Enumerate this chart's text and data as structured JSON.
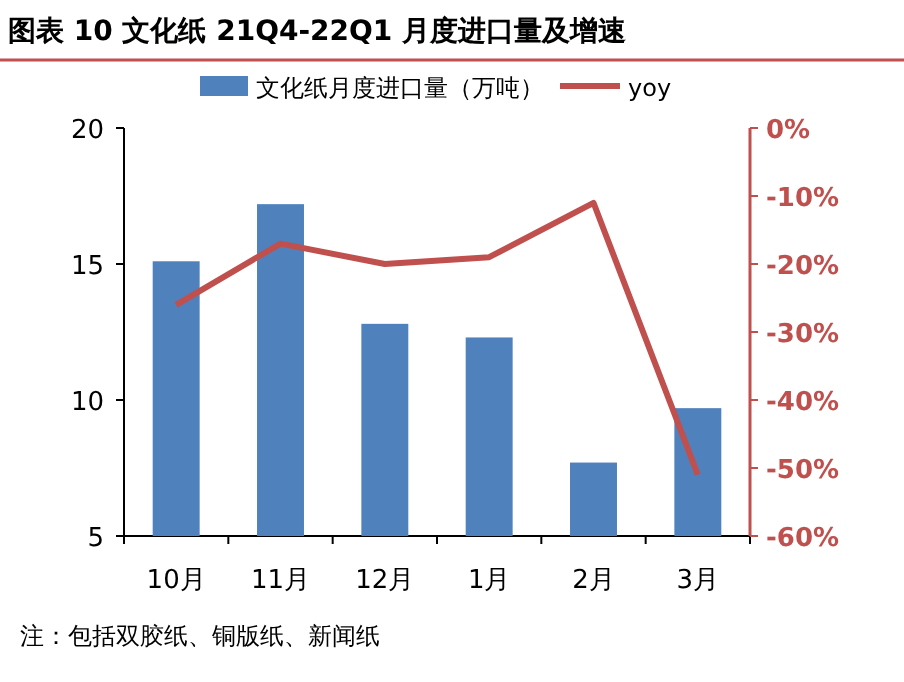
{
  "chart_data": {
    "type": "bar",
    "title": "图表 10  文化纸 21Q4-22Q1 月度进口量及增速",
    "categories": [
      "10月",
      "11月",
      "12月",
      "1月",
      "2月",
      "3月"
    ],
    "series": [
      {
        "name": "文化纸月度进口量（万吨）",
        "color": "#4f81bd",
        "values": [
          15.1,
          17.2,
          12.8,
          12.3,
          7.7,
          9.7
        ]
      },
      {
        "name": "yoy",
        "type": "line",
        "axis": "y2",
        "color": "#c0504d",
        "values": [
          -26,
          -17,
          -20,
          -19,
          -11,
          -51
        ]
      }
    ],
    "ylim": [
      5,
      20
    ],
    "yticks": [
      5,
      10,
      15,
      20
    ],
    "y2lim": [
      -60,
      0
    ],
    "y2ticks": [
      {
        "value": 0,
        "label": "0%"
      },
      {
        "value": -10,
        "label": "-10%"
      },
      {
        "value": -20,
        "label": "-20%"
      },
      {
        "value": -30,
        "label": "-30%"
      },
      {
        "value": -40,
        "label": "-40%"
      },
      {
        "value": -50,
        "label": "-50%"
      },
      {
        "value": -60,
        "label": "-60%"
      }
    ],
    "legend": "top",
    "grid": false,
    "marker": "none",
    "annotations": [
      "注：包括双胶纸、铜版纸、新闻纸"
    ]
  }
}
